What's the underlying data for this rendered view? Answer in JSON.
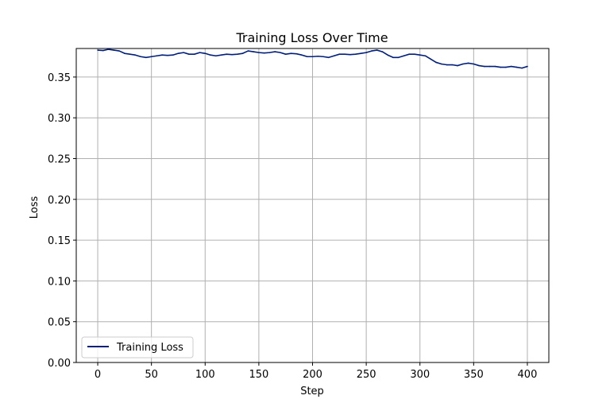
{
  "chart_data": {
    "type": "line",
    "title": "Training Loss Over Time",
    "xlabel": "Step",
    "ylabel": "Loss",
    "xlim": [
      -20,
      420
    ],
    "ylim": [
      0,
      0.385
    ],
    "xticks": [
      0,
      50,
      100,
      150,
      200,
      250,
      300,
      350,
      400
    ],
    "yticks": [
      0.0,
      0.05,
      0.1,
      0.15,
      0.2,
      0.25,
      0.3,
      0.35
    ],
    "ytick_labels": [
      "0.00",
      "0.05",
      "0.10",
      "0.15",
      "0.20",
      "0.25",
      "0.30",
      "0.35"
    ],
    "grid": true,
    "legend_position": "lower-left",
    "series": [
      {
        "name": "Training Loss",
        "color": "#001f7a",
        "x": [
          0,
          5,
          10,
          15,
          20,
          25,
          30,
          35,
          40,
          45,
          50,
          55,
          60,
          65,
          70,
          75,
          80,
          85,
          90,
          95,
          100,
          105,
          110,
          115,
          120,
          125,
          130,
          135,
          140,
          145,
          150,
          155,
          160,
          165,
          170,
          175,
          180,
          185,
          190,
          195,
          200,
          205,
          210,
          215,
          220,
          225,
          230,
          235,
          240,
          245,
          250,
          255,
          260,
          265,
          270,
          275,
          280,
          285,
          290,
          295,
          300,
          305,
          310,
          315,
          320,
          325,
          330,
          335,
          340,
          345,
          350,
          355,
          360,
          365,
          370,
          375,
          380,
          385,
          390,
          395,
          400
        ],
        "y": [
          0.383,
          0.3825,
          0.384,
          0.383,
          0.382,
          0.379,
          0.378,
          0.377,
          0.375,
          0.374,
          0.375,
          0.376,
          0.377,
          0.3765,
          0.377,
          0.379,
          0.38,
          0.378,
          0.378,
          0.38,
          0.379,
          0.377,
          0.376,
          0.377,
          0.378,
          0.3775,
          0.378,
          0.379,
          0.382,
          0.381,
          0.38,
          0.3795,
          0.38,
          0.381,
          0.38,
          0.378,
          0.379,
          0.3785,
          0.377,
          0.375,
          0.375,
          0.3755,
          0.375,
          0.374,
          0.376,
          0.378,
          0.378,
          0.3775,
          0.378,
          0.379,
          0.38,
          0.382,
          0.383,
          0.381,
          0.377,
          0.374,
          0.374,
          0.376,
          0.378,
          0.378,
          0.377,
          0.376,
          0.372,
          0.368,
          0.366,
          0.365,
          0.365,
          0.364,
          0.366,
          0.367,
          0.366,
          0.364,
          0.363,
          0.363,
          0.363,
          0.362,
          0.362,
          0.363,
          0.362,
          0.361,
          0.363
        ]
      }
    ]
  }
}
